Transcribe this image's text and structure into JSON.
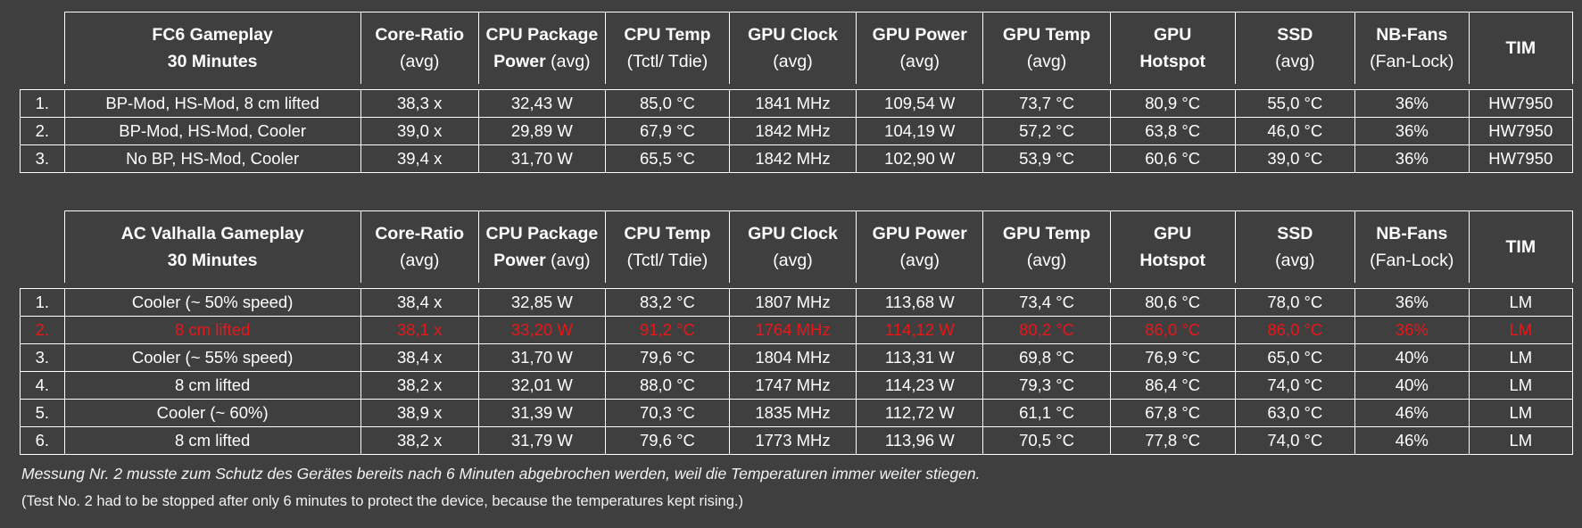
{
  "headers": {
    "core_ratio": [
      "Core-Ratio",
      "(avg)"
    ],
    "cpu_package": [
      "CPU Package",
      "Power",
      " (avg)"
    ],
    "cpu_temp": [
      "CPU Temp",
      "(Tctl/ Tdie)"
    ],
    "gpu_clock": [
      "GPU Clock",
      "(avg)"
    ],
    "gpu_power": [
      "GPU Power",
      "(avg)"
    ],
    "gpu_temp": [
      "GPU Temp",
      "(avg)"
    ],
    "gpu_hotspot": [
      "GPU",
      "Hotspot"
    ],
    "ssd": [
      "SSD",
      "(avg)"
    ],
    "nb_fans": [
      "NB-Fans",
      "(Fan-Lock)"
    ],
    "tim": "TIM"
  },
  "table1": {
    "title": [
      "FC6 Gameplay",
      "30 Minutes"
    ],
    "rows": [
      {
        "num": "1.",
        "config": "BP-Mod, HS-Mod, 8 cm lifted",
        "core_ratio": "38,3 x",
        "cpu_power": "32,43 W",
        "cpu_temp": "85,0 °C",
        "gpu_clock": "1841 MHz",
        "gpu_power": "109,54 W",
        "gpu_temp": "73,7 °C",
        "gpu_hotspot": "80,9 °C",
        "ssd": "55,0 °C",
        "nb_fans": "36%",
        "tim": "HW7950"
      },
      {
        "num": "2.",
        "config": "BP-Mod, HS-Mod, Cooler",
        "core_ratio": "39,0 x",
        "cpu_power": "29,89 W",
        "cpu_temp": "67,9 °C",
        "gpu_clock": "1842 MHz",
        "gpu_power": "104,19 W",
        "gpu_temp": "57,2 °C",
        "gpu_hotspot": "63,8 °C",
        "ssd": "46,0 °C",
        "nb_fans": "36%",
        "tim": "HW7950"
      },
      {
        "num": "3.",
        "config": "No BP, HS-Mod, Cooler",
        "core_ratio": "39,4 x",
        "cpu_power": "31,70 W",
        "cpu_temp": "65,5 °C",
        "gpu_clock": "1842 MHz",
        "gpu_power": "102,90 W",
        "gpu_temp": "53,9 °C",
        "gpu_hotspot": "60,6 °C",
        "ssd": "39,0 °C",
        "nb_fans": "36%",
        "tim": "HW7950"
      }
    ]
  },
  "table2": {
    "title": [
      "AC Valhalla Gameplay",
      "30 Minutes"
    ],
    "rows": [
      {
        "num": "1.",
        "config": "Cooler (~ 50% speed)",
        "core_ratio": "38,4 x",
        "cpu_power": "32,85 W",
        "cpu_temp": "83,2 °C",
        "gpu_clock": "1807 MHz",
        "gpu_power": "113,68 W",
        "gpu_temp": "73,4 °C",
        "gpu_hotspot": "80,6 °C",
        "ssd": "78,0 °C",
        "nb_fans": "36%",
        "tim": "LM"
      },
      {
        "num": "2.",
        "config": "8 cm lifted",
        "core_ratio": "38,1 x",
        "cpu_power": "33,20 W",
        "cpu_temp": "91,2 °C",
        "gpu_clock": "1764 MHz",
        "gpu_power": "114,12 W",
        "gpu_temp": "80,2 °C",
        "gpu_hotspot": "86,0 °C",
        "ssd": "86,0 °C",
        "nb_fans": "36%",
        "tim": "LM"
      },
      {
        "num": "3.",
        "config": "Cooler (~ 55% speed)",
        "core_ratio": "38,4 x",
        "cpu_power": "31,70 W",
        "cpu_temp": "79,6 °C",
        "gpu_clock": "1804 MHz",
        "gpu_power": "113,31 W",
        "gpu_temp": "69,8 °C",
        "gpu_hotspot": "76,9 °C",
        "ssd": "65,0 °C",
        "nb_fans": "40%",
        "tim": "LM"
      },
      {
        "num": "4.",
        "config": "8 cm lifted",
        "core_ratio": "38,2 x",
        "cpu_power": "32,01 W",
        "cpu_temp": "88,0 °C",
        "gpu_clock": "1747 MHz",
        "gpu_power": "114,23 W",
        "gpu_temp": "79,3 °C",
        "gpu_hotspot": "86,4 °C",
        "ssd": "74,0 °C",
        "nb_fans": "40%",
        "tim": "LM"
      },
      {
        "num": "5.",
        "config": "Cooler (~ 60%)",
        "core_ratio": "38,9 x",
        "cpu_power": "31,39 W",
        "cpu_temp": "70,3 °C",
        "gpu_clock": "1835 MHz",
        "gpu_power": "112,72 W",
        "gpu_temp": "61,1 °C",
        "gpu_hotspot": "67,8 °C",
        "ssd": "63,0 °C",
        "nb_fans": "46%",
        "tim": "LM"
      },
      {
        "num": "6.",
        "config": "8 cm lifted",
        "core_ratio": "38,2 x",
        "cpu_power": "31,79 W",
        "cpu_temp": "79,6 °C",
        "gpu_clock": "1773 MHz",
        "gpu_power": "113,96 W",
        "gpu_temp": "70,5 °C",
        "gpu_hotspot": "77,8 °C",
        "ssd": "74,0 °C",
        "nb_fans": "46%",
        "tim": "LM"
      }
    ]
  },
  "notes": {
    "german": "Messung Nr. 2 musste zum Schutz des Gerätes bereits nach 6 Minuten abgebrochen werden, weil die Temperaturen immer weiter stiegen.",
    "english": "(Test No. 2 had to be stopped after only 6 minutes to protect the device, because the temperatures kept rising.)"
  },
  "colors": {
    "background": "#3f3f3f",
    "text": "#ffffff",
    "aborted_row": "#e8171a"
  }
}
